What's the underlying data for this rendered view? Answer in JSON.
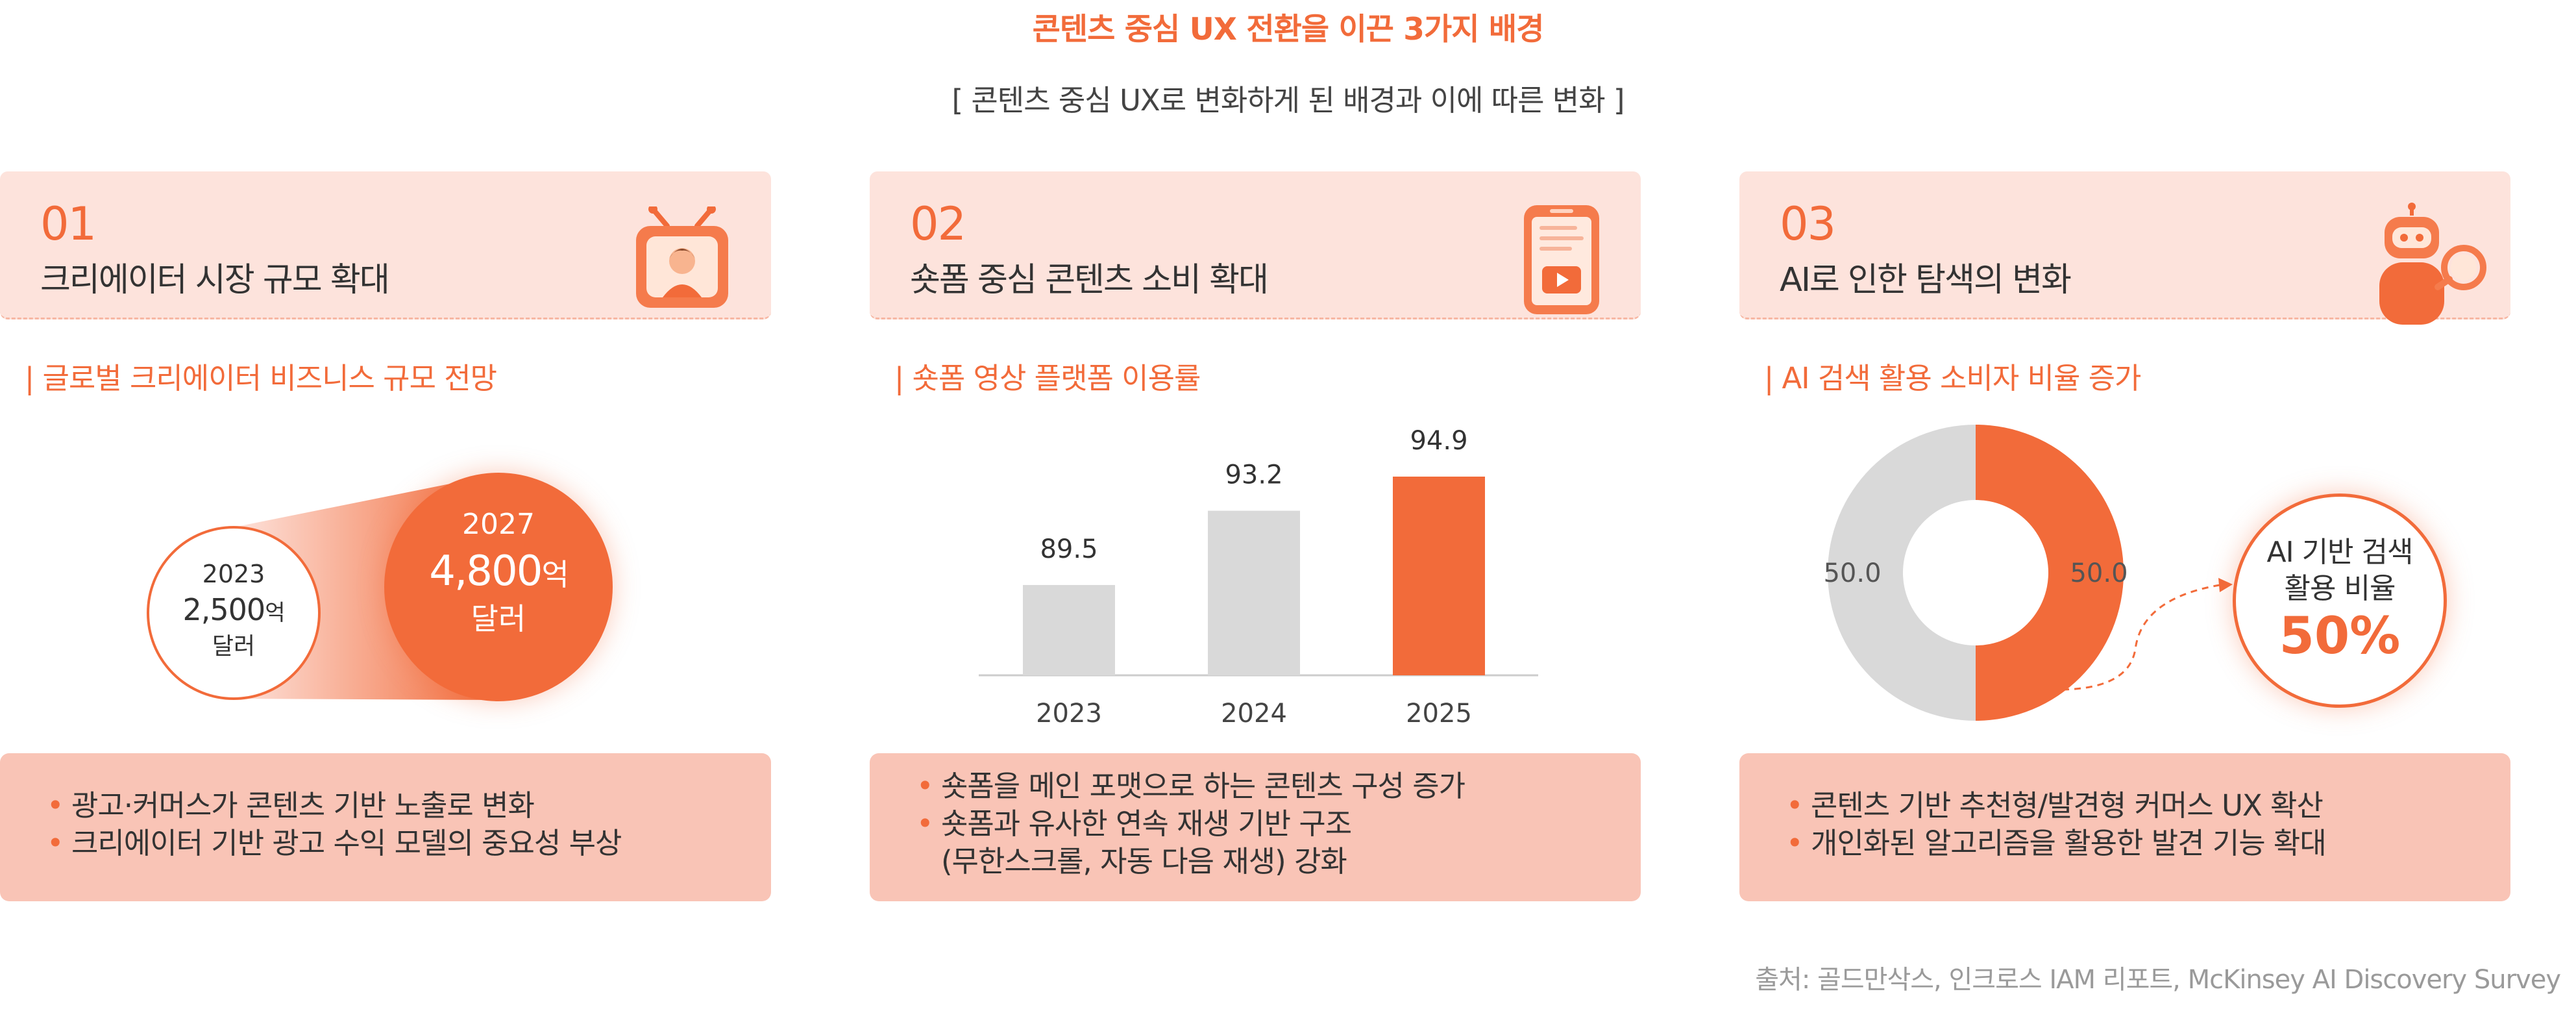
{
  "title": "콘텐츠 중심 UX 전환을 이끈 3가지 배경",
  "subtitle": "[ 콘텐츠 중심 UX로 변화하게 된 배경과 이에 따른 변화 ]",
  "panels": [
    {
      "num": "01",
      "title": "크리에이터 시장 규모 확대",
      "icon": "tv-creator-icon",
      "section_label": "| 글로벌 크리에이터 비즈니스 규모 전망",
      "bullets": [
        "광고·커머스가 콘텐츠 기반 노출로 변화",
        "크리에이터 기반 광고 수익 모델의 중요성 부상"
      ]
    },
    {
      "num": "02",
      "title": "숏폼 중심 콘텐츠 소비 확대",
      "icon": "phone-video-icon",
      "section_label": "| 숏폼 영상 플랫폼 이용률",
      "bullets": [
        "숏폼을 메인 포맷으로 하는 콘텐츠 구성 증가",
        "숏폼과 유사한 연속 재생 기반 구조",
        "(무한스크롤, 자동 다음 재생) 강화"
      ]
    },
    {
      "num": "03",
      "title": "AI로 인한 탐색의 변화",
      "icon": "robot-search-icon",
      "section_label": "| AI 검색 활용 소비자 비율 증가",
      "bullets": [
        "콘텐츠 기반 추천형/발견형 커머스 UX 확산",
        "개인화된 알고리즘을 활용한 발견 기능 확대"
      ]
    }
  ],
  "bullet_mark": "•",
  "source": "출처: 골드만삭스, 인크로스 IAM 리포트, McKinsey AI Discovery Survey",
  "colors": {
    "accent": "#f26b3a",
    "gray_bar": "#d9d9d9",
    "panel_bg": "#fde3dc",
    "foot_bg": "#f9c4b6"
  },
  "chart_data": [
    {
      "type": "bubble",
      "items": [
        {
          "year": "2023",
          "value": "2,500",
          "unit_small": "억",
          "unit2": "달러"
        },
        {
          "year": "2027",
          "value": "4,800",
          "unit_small": "억",
          "unit2": "달러"
        }
      ]
    },
    {
      "type": "bar",
      "categories": [
        "2023",
        "2024",
        "2025"
      ],
      "values": [
        89.5,
        93.2,
        94.9
      ],
      "labels": [
        "89.5",
        "93.2",
        "94.9"
      ],
      "ylim": [
        85,
        96
      ],
      "highlight_index": 2,
      "grid": false
    },
    {
      "type": "pie",
      "donut": true,
      "values": [
        50.0,
        50.0
      ],
      "labels": [
        "50.0",
        "50.0"
      ],
      "colors": [
        "#d9d9d9",
        "#f26b3a"
      ],
      "callout": {
        "line1": "AI 기반 검색",
        "line2": "활용 비율",
        "value": "50%"
      }
    }
  ]
}
